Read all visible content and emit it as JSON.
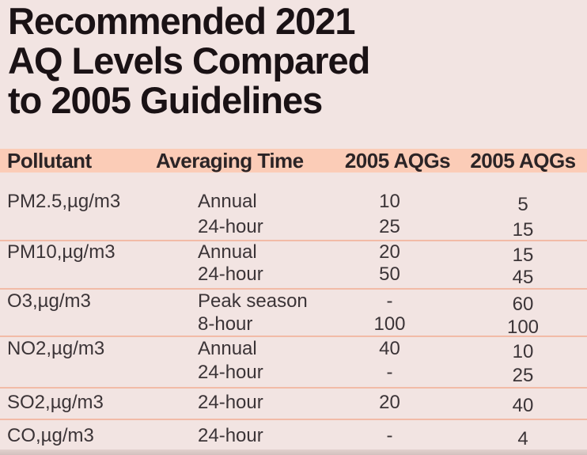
{
  "title": {
    "line1": "Recommended 2021",
    "line2": "AQ Levels Compared",
    "line3": "to 2005 Guidelines"
  },
  "table": {
    "columns": [
      "Pollutant",
      "Averaging Time",
      "2005 AQGs",
      "2005 AQGs"
    ],
    "groups": [
      {
        "pollutant": "PM2.5,µg/m3",
        "rows": [
          [
            "Annual",
            "10",
            "5"
          ],
          [
            "24-hour",
            "25",
            "15"
          ]
        ]
      },
      {
        "pollutant": "PM10,µg/m3",
        "rows": [
          [
            "Annual",
            "20",
            "15"
          ],
          [
            "24-hour",
            "50",
            "45"
          ]
        ]
      },
      {
        "pollutant": "O3,µg/m3",
        "rows": [
          [
            "Peak season",
            "-",
            "60"
          ],
          [
            "8-hour",
            "100",
            "100"
          ]
        ]
      },
      {
        "pollutant": "NO2,µg/m3",
        "rows": [
          [
            "Annual",
            "40",
            "10"
          ],
          [
            "24-hour",
            "-",
            "25"
          ]
        ]
      },
      {
        "pollutant": "SO2,µg/m3",
        "rows": [
          [
            "24-hour",
            "20",
            "40"
          ]
        ]
      },
      {
        "pollutant": "CO,µg/m3",
        "rows": [
          [
            "24-hour",
            "-",
            "4"
          ]
        ]
      }
    ]
  },
  "chart_data": {
    "type": "table",
    "title": "Recommended 2021 AQ Levels Compared to 2005 Guidelines",
    "columns": [
      "Pollutant",
      "Averaging Time",
      "2005 AQGs",
      "2005 AQGs"
    ],
    "rows": [
      [
        "PM2.5,µg/m3",
        "Annual",
        "10",
        "5"
      ],
      [
        "",
        "24-hour",
        "25",
        "15"
      ],
      [
        "PM10,µg/m3",
        "Annual",
        "20",
        "15"
      ],
      [
        "",
        "24-hour",
        "50",
        "45"
      ],
      [
        "O3,µg/m3",
        "Peak season",
        "-",
        "60"
      ],
      [
        "",
        "8-hour",
        "100",
        "100"
      ],
      [
        "NO2,µg/m3",
        "Annual",
        "40",
        "10"
      ],
      [
        "",
        "24-hour",
        "-",
        "25"
      ],
      [
        "SO2,µg/m3",
        "24-hour",
        "20",
        "40"
      ],
      [
        "CO,µg/m3",
        "24-hour",
        "-",
        "4"
      ]
    ]
  },
  "colors": {
    "background": "#f2e4e2",
    "header_band": "#fbccb7",
    "separator": "#f2bba7",
    "title_text": "#1a1215",
    "body_text": "#3b3437"
  }
}
